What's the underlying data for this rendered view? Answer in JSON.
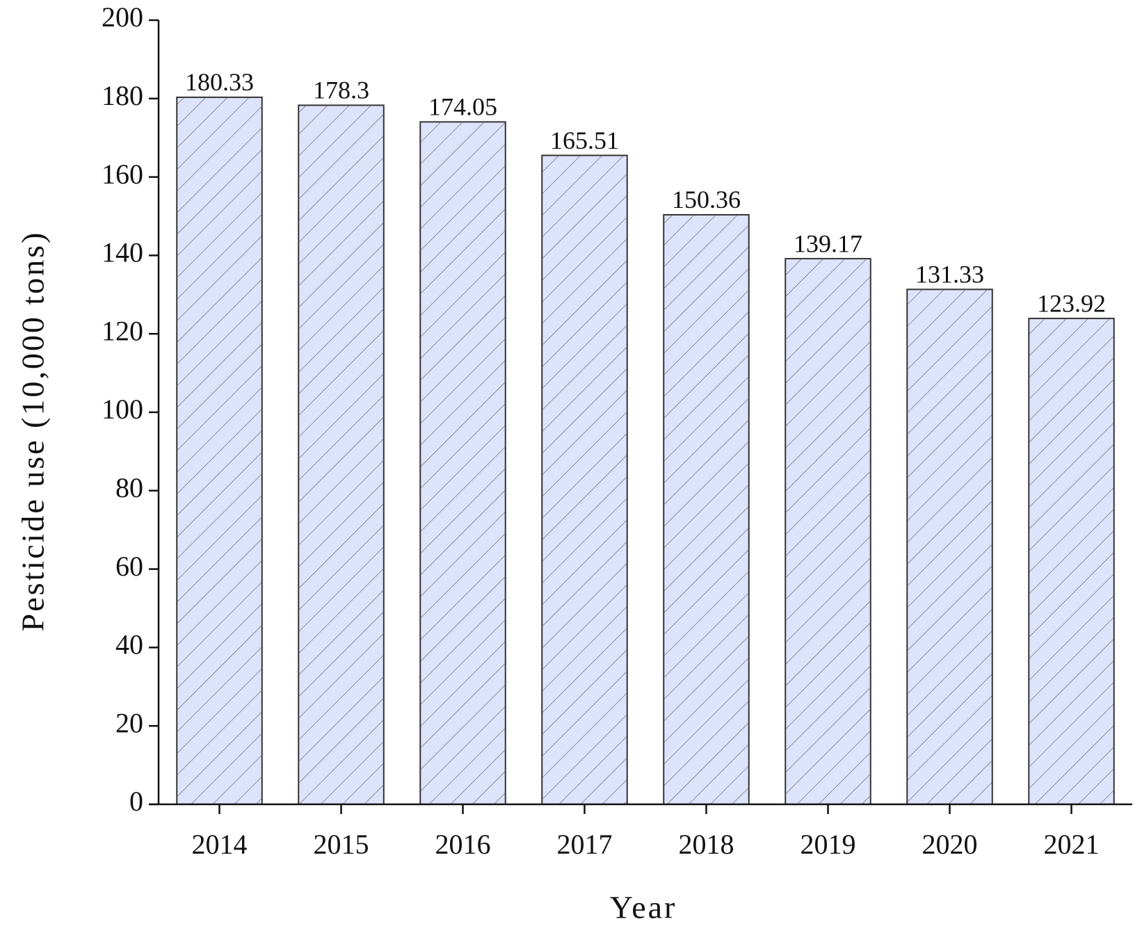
{
  "chart_data": {
    "type": "bar",
    "x_label": "Year",
    "y_label": "Pesticide use (10,000 tons)",
    "categories": [
      "2014",
      "2015",
      "2016",
      "2017",
      "2018",
      "2019",
      "2020",
      "2021"
    ],
    "values": [
      180.33,
      178.3,
      174.05,
      165.51,
      150.36,
      139.17,
      131.33,
      123.92
    ],
    "color": "#dde3fb",
    "ylim": [
      0,
      200
    ],
    "yticks": [
      0,
      20,
      40,
      60,
      80,
      100,
      120,
      140,
      160,
      180,
      200
    ],
    "grid": false
  }
}
